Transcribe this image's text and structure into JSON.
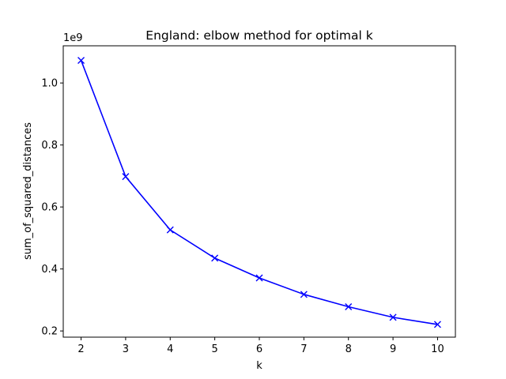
{
  "chart_data": {
    "type": "line",
    "title": "England: elbow method for optimal k",
    "xlabel": "k",
    "ylabel": "sum_of_squared_distances",
    "y_offset_label": "1e9",
    "y_scale": 1000000000,
    "xlim": [
      1.6,
      10.4
    ],
    "ylim": [
      0.18,
      1.12
    ],
    "xticks": [
      2,
      3,
      4,
      5,
      6,
      7,
      8,
      9,
      10
    ],
    "yticks": [
      0.2,
      0.4,
      0.6,
      0.8,
      1.0
    ],
    "ytick_labels": [
      "0.2",
      "0.4",
      "0.6",
      "0.8",
      "1.0"
    ],
    "grid": false,
    "series": [
      {
        "x": [
          2,
          3,
          4,
          5,
          6,
          7,
          8,
          9,
          10
        ],
        "values": [
          1.073,
          0.698,
          0.526,
          0.435,
          0.371,
          0.318,
          0.278,
          0.244,
          0.221
        ],
        "color": "#0000ff",
        "marker": "x"
      }
    ]
  }
}
